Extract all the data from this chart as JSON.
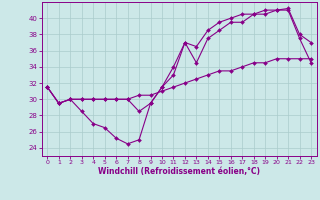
{
  "xlabel": "Windchill (Refroidissement éolien,°C)",
  "background_color": "#cce8e8",
  "grid_color": "#aacccc",
  "line_color": "#880088",
  "xlim": [
    -0.5,
    23.5
  ],
  "ylim": [
    23.0,
    42.0
  ],
  "yticks": [
    24,
    26,
    28,
    30,
    32,
    34,
    36,
    38,
    40
  ],
  "xticks": [
    0,
    1,
    2,
    3,
    4,
    5,
    6,
    7,
    8,
    9,
    10,
    11,
    12,
    13,
    14,
    15,
    16,
    17,
    18,
    19,
    20,
    21,
    22,
    23
  ],
  "line1_x": [
    0,
    1,
    2,
    3,
    4,
    5,
    6,
    7,
    8,
    9,
    10,
    11,
    12,
    13,
    14,
    15,
    16,
    17,
    18,
    19,
    20,
    21,
    22,
    23
  ],
  "line1_y": [
    31.5,
    29.5,
    30.0,
    28.5,
    27.0,
    26.5,
    25.2,
    24.5,
    25.0,
    29.5,
    31.5,
    33.0,
    37.0,
    34.5,
    37.5,
    38.5,
    39.5,
    39.5,
    40.5,
    40.5,
    41.0,
    41.0,
    37.5,
    34.5
  ],
  "line2_x": [
    0,
    1,
    2,
    3,
    4,
    5,
    6,
    7,
    8,
    9,
    10,
    11,
    12,
    13,
    14,
    15,
    16,
    17,
    18,
    19,
    20,
    21,
    22,
    23
  ],
  "line2_y": [
    31.5,
    29.5,
    30.0,
    30.0,
    30.0,
    30.0,
    30.0,
    30.0,
    28.5,
    29.5,
    31.5,
    34.0,
    37.0,
    36.5,
    38.5,
    39.5,
    40.0,
    40.5,
    40.5,
    41.0,
    41.0,
    41.2,
    38.0,
    37.0
  ],
  "line3_x": [
    0,
    1,
    2,
    3,
    4,
    5,
    6,
    7,
    8,
    9,
    10,
    11,
    12,
    13,
    14,
    15,
    16,
    17,
    18,
    19,
    20,
    21,
    22,
    23
  ],
  "line3_y": [
    31.5,
    29.5,
    30.0,
    30.0,
    30.0,
    30.0,
    30.0,
    30.0,
    30.5,
    30.5,
    31.0,
    31.5,
    32.0,
    32.5,
    33.0,
    33.5,
    33.5,
    34.0,
    34.5,
    34.5,
    35.0,
    35.0,
    35.0,
    35.0
  ]
}
